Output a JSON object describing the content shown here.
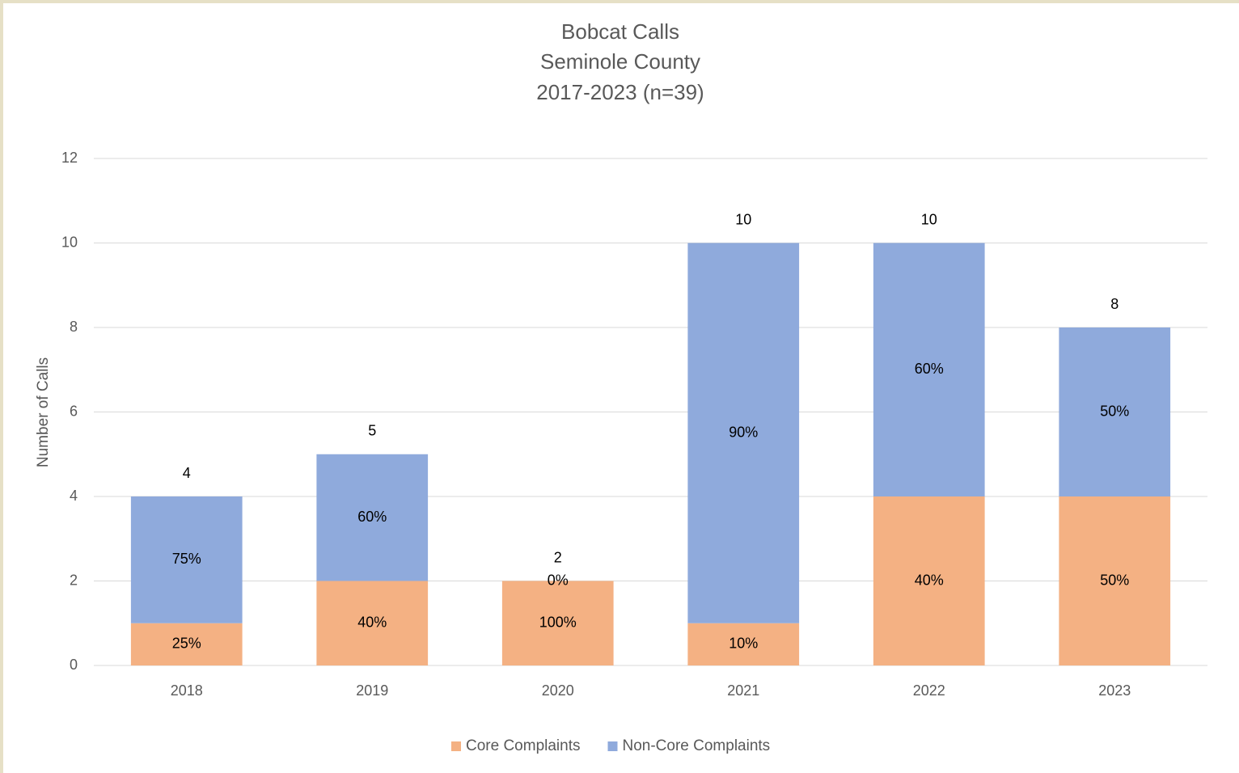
{
  "chart_data": {
    "type": "stacked_bar",
    "title": [
      "Bobcat Calls",
      "Seminole County",
      "2017-2023 (n=39)"
    ],
    "y_label": "Number of Calls",
    "categories": [
      "2018",
      "2019",
      "2020",
      "2021",
      "2022",
      "2023"
    ],
    "series": [
      {
        "name": "Core Complaints",
        "color": "#f4b183",
        "values": [
          1,
          2,
          2,
          1,
          4,
          4
        ],
        "share_labels": [
          "25%",
          "40%",
          "100%",
          "10%",
          "40%",
          "50%"
        ]
      },
      {
        "name": "Non-Core Complaints",
        "color": "#8faadc",
        "values": [
          3,
          3,
          0,
          9,
          6,
          4
        ],
        "share_labels": [
          "75%",
          "60%",
          "0%",
          "90%",
          "60%",
          "50%"
        ]
      }
    ],
    "totals": [
      4,
      5,
      2,
      10,
      10,
      8
    ],
    "ylim": [
      0,
      12
    ],
    "yticks": [
      0,
      2,
      4,
      6,
      8,
      10,
      12
    ],
    "grid": true,
    "legend": "bottom"
  }
}
